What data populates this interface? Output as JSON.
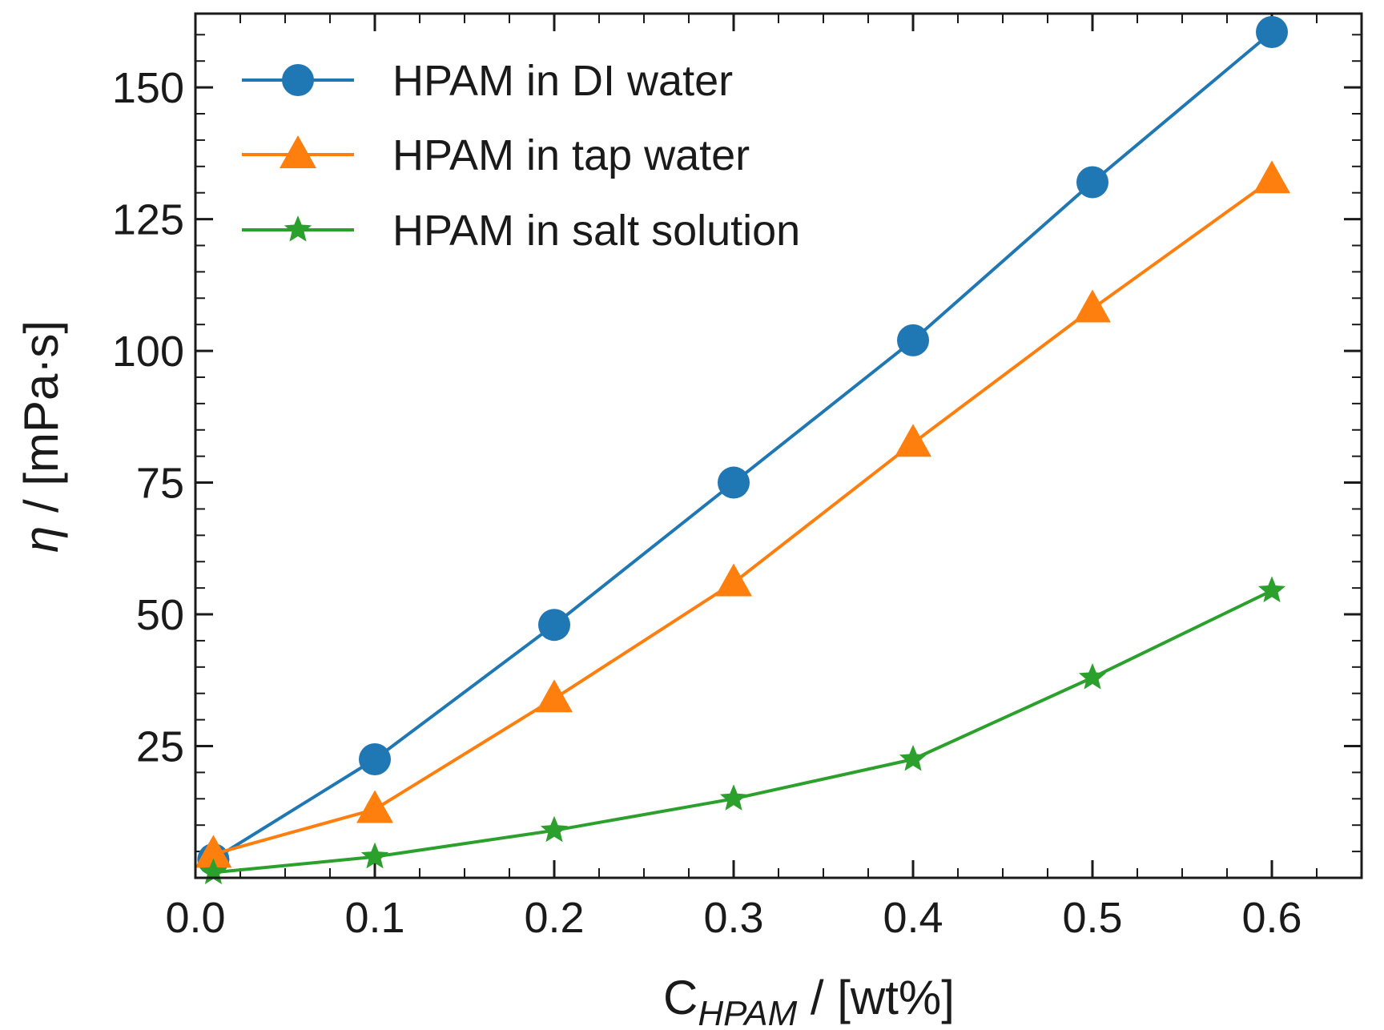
{
  "chart_data": {
    "type": "line",
    "title": "",
    "xlabel": {
      "main": "C",
      "sub": "HPAM",
      "unit": " / [wt%]"
    },
    "ylabel": {
      "symbol": "η",
      "unit": " / [mPa·s]"
    },
    "xlim": [
      0.0,
      0.65
    ],
    "ylim": [
      0,
      164
    ],
    "xticks": [
      0.0,
      0.1,
      0.2,
      0.3,
      0.4,
      0.5,
      0.6
    ],
    "xtick_labels": [
      "0.0",
      "0.1",
      "0.2",
      "0.3",
      "0.4",
      "0.5",
      "0.6"
    ],
    "yticks": [
      25,
      50,
      75,
      100,
      125,
      150
    ],
    "ytick_labels": [
      "25",
      "50",
      "75",
      "100",
      "125",
      "150"
    ],
    "legend_position": "top-left",
    "grid": false,
    "series": [
      {
        "name": "HPAM in DI water",
        "color": "#1f77b4",
        "marker": "circle",
        "x": [
          0.01,
          0.1,
          0.2,
          0.3,
          0.4,
          0.5,
          0.6
        ],
        "y": [
          3.5,
          22.5,
          48,
          75,
          102,
          132,
          160.5
        ]
      },
      {
        "name": "HPAM in tap water",
        "color": "#ff7f0e",
        "marker": "triangle",
        "x": [
          0.01,
          0.1,
          0.2,
          0.3,
          0.4,
          0.5,
          0.6
        ],
        "y": [
          4.5,
          13,
          34,
          56,
          82.5,
          108,
          132.5
        ]
      },
      {
        "name": "HPAM in salt solution",
        "color": "#2ca02c",
        "marker": "star",
        "x": [
          0.01,
          0.1,
          0.2,
          0.3,
          0.4,
          0.5,
          0.6
        ],
        "y": [
          1,
          4,
          9,
          15,
          22.5,
          38,
          54.5
        ]
      }
    ]
  }
}
